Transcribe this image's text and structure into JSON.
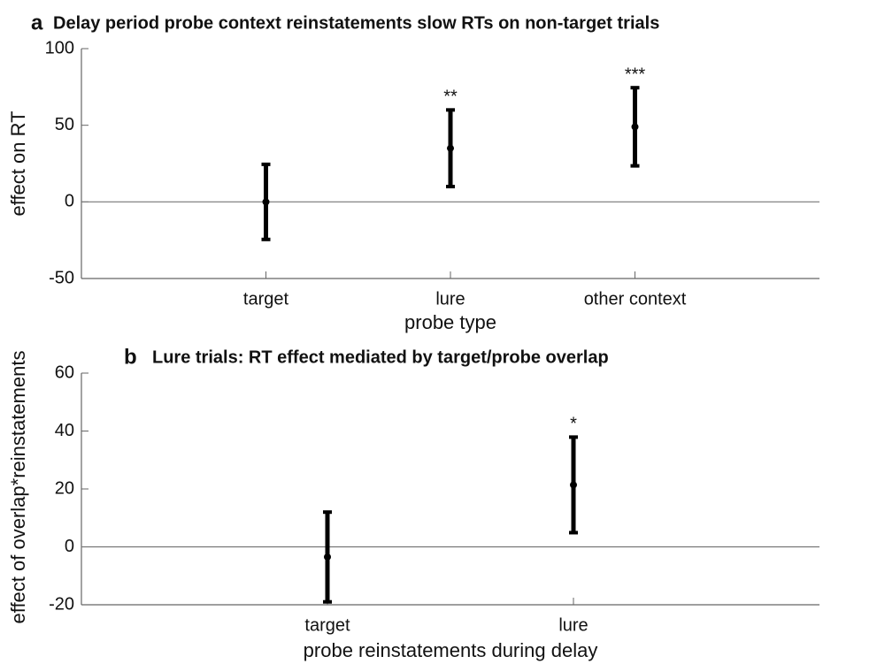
{
  "chart_data": [
    {
      "type": "errorbar",
      "panel_label": "a",
      "title": "Delay period probe context reinstatements slow RTs on non-target trials",
      "categories": [
        "target",
        "lure",
        "other context"
      ],
      "values": [
        0,
        35,
        49
      ],
      "errors": [
        24.5,
        25,
        25.5
      ],
      "annotations": [
        null,
        "**",
        "***"
      ],
      "xlim": [
        0,
        4
      ],
      "ylim": [
        -50,
        100
      ],
      "yticks": [
        -50,
        0,
        50,
        100
      ],
      "xlabel": "probe type",
      "ylabel": "effect on RT",
      "color": "#000000",
      "zero_line": true
    },
    {
      "type": "errorbar",
      "panel_label": "b",
      "title": "Lure trials: RT effect mediated by target/probe overlap",
      "categories": [
        "target",
        "lure"
      ],
      "values": [
        -3.5,
        21.4
      ],
      "errors": [
        15.5,
        16.5
      ],
      "annotations": [
        null,
        "*"
      ],
      "xlim": [
        0,
        3
      ],
      "ylim": [
        -20,
        60
      ],
      "yticks": [
        -20,
        0,
        20,
        40,
        60
      ],
      "xlabel": "probe reinstatements during delay",
      "ylabel": "effect of overlap*reinstatements",
      "color": "#000000",
      "zero_line": true
    }
  ]
}
